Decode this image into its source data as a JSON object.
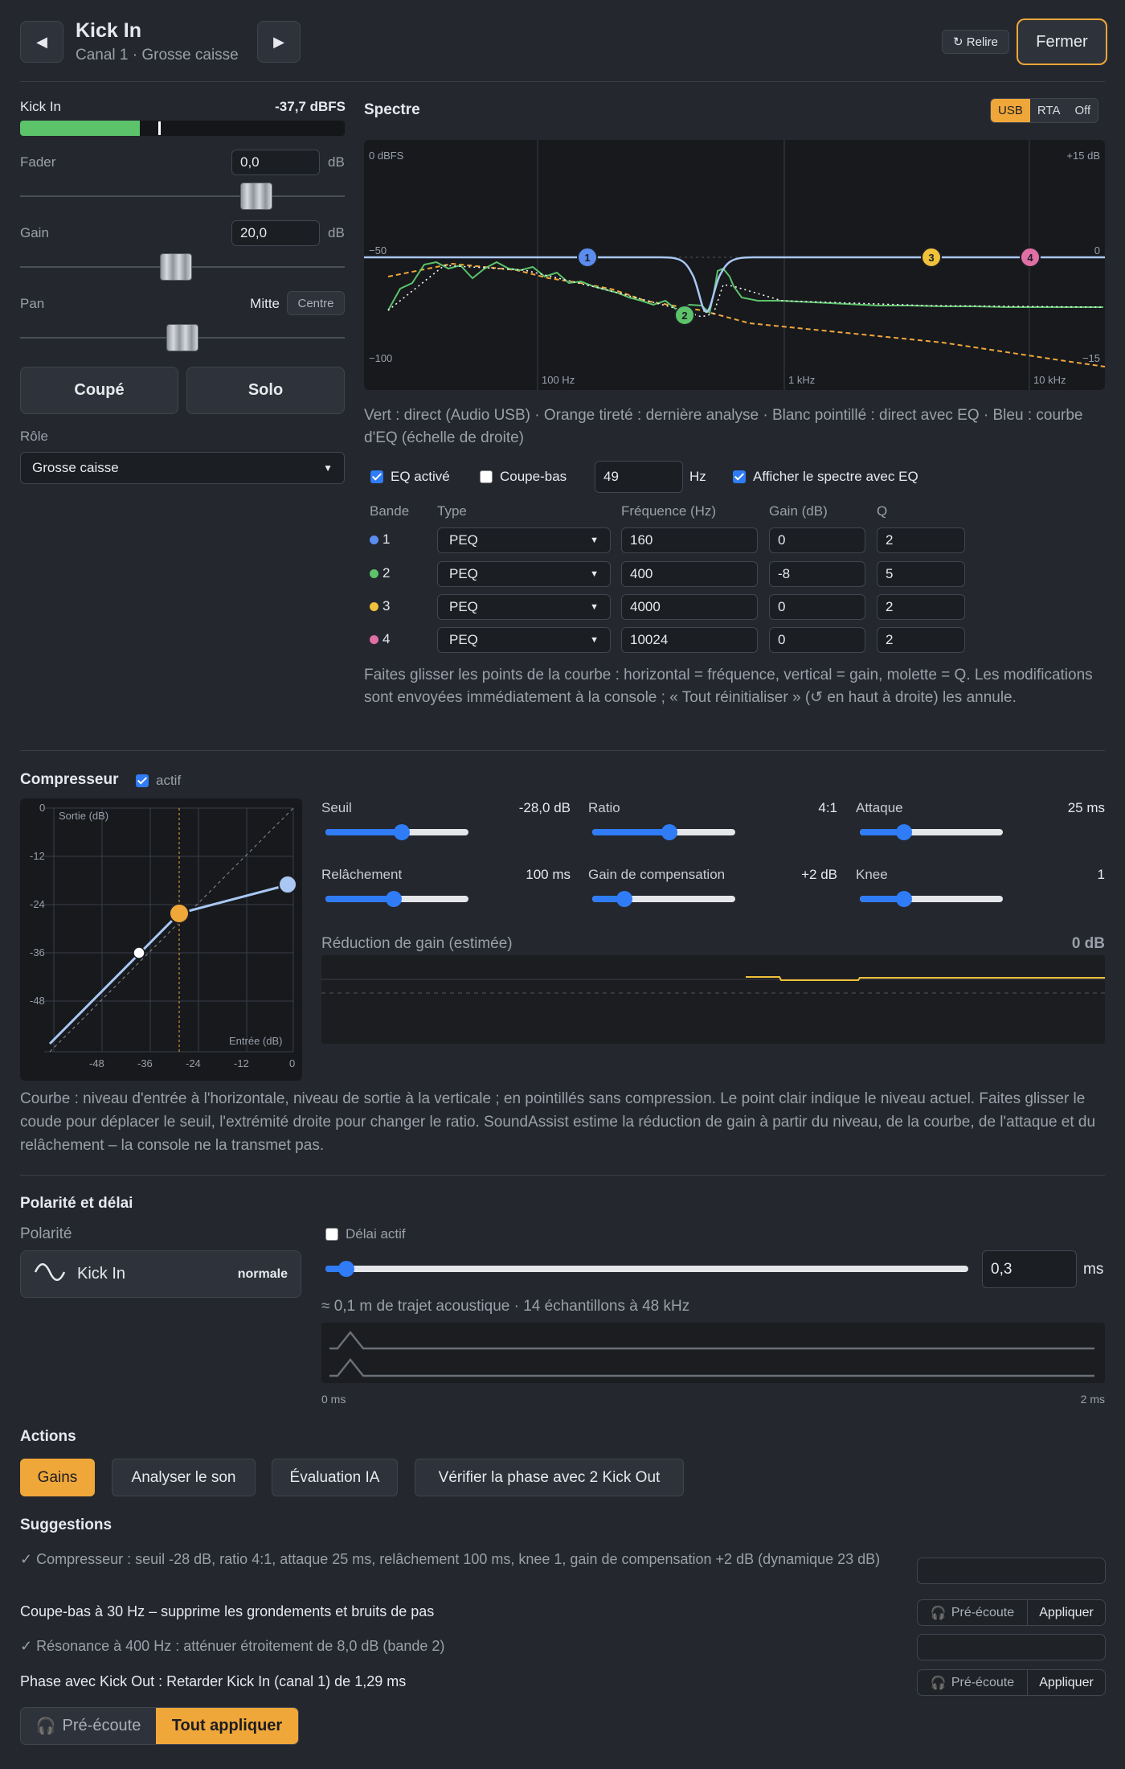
{
  "header": {
    "title": "Kick In",
    "subtitle": "Canal 1 · Grosse caisse",
    "prev": "◀",
    "next": "▶",
    "reload": "↻ Relire",
    "close": "Fermer"
  },
  "meter": {
    "label": "Kick In",
    "value": "-37,7 dBFS",
    "level_fraction": 0.37
  },
  "fader": {
    "label": "Fader",
    "value": "0,0",
    "unit": "dB"
  },
  "gain": {
    "label": "Gain",
    "value": "20,0",
    "unit": "dB"
  },
  "pan": {
    "label": "Pan",
    "value": "Mitte",
    "centre": "Centre"
  },
  "buttons": {
    "mute": "Coupé",
    "solo": "Solo"
  },
  "role": {
    "label": "Rôle",
    "value": "Grosse caisse"
  },
  "spectrum": {
    "title": "Spectre",
    "modes": [
      "USB",
      "RTA",
      "Off"
    ],
    "active_mode": "USB",
    "axis": {
      "top_left": "0 dBFS",
      "top_right": "+15 dB",
      "mid_left": "−50",
      "mid_right": "0",
      "bottom_left": "−100",
      "bottom_right": "−15",
      "x_labels": [
        "100 Hz",
        "1 kHz",
        "10 kHz"
      ]
    },
    "caption": "Vert : direct (Audio USB) · Orange tireté : dernière analyse · Blanc pointillé : direct avec EQ · Bleu : courbe d'EQ (échelle de droite)"
  },
  "eq": {
    "eq_label": "EQ activé",
    "eq_on": true,
    "hpf_label": "Coupe-bas",
    "hpf_on": false,
    "hpf_value": "49",
    "hpf_unit": "Hz",
    "show_label": "Afficher le spectre avec EQ",
    "show_on": true,
    "headers": [
      "Bande",
      "Type",
      "Fréquence (Hz)",
      "Gain (dB)",
      "Q"
    ],
    "bands": [
      {
        "n": "1",
        "color": "#5b8def",
        "type": "PEQ",
        "freq": "160",
        "gain": "0",
        "q": "2"
      },
      {
        "n": "2",
        "color": "#5cc36b",
        "type": "PEQ",
        "freq": "400",
        "gain": "-8",
        "q": "5"
      },
      {
        "n": "3",
        "color": "#f0c13a",
        "type": "PEQ",
        "freq": "4000",
        "gain": "0",
        "q": "2"
      },
      {
        "n": "4",
        "color": "#e06fa6",
        "type": "PEQ",
        "freq": "10024",
        "gain": "0",
        "q": "2"
      }
    ],
    "help": "Faites glisser les points de la courbe : horizontal = fréquence, vertical = gain, molette = Q. Les modifications sont envoyées immédiatement à la console ; « Tout réinitialiser » (↺ en haut à droite) les annule."
  },
  "compressor": {
    "title": "Compresseur",
    "active_label": "actif",
    "active": true,
    "graph": {
      "ylabel": "Sortie (dB)",
      "xlabel": "Entrée (dB)",
      "y_ticks": [
        "0",
        "-12",
        "-24",
        "-36",
        "-48"
      ],
      "x_ticks": [
        "-48",
        "-36",
        "-24",
        "-12",
        "0"
      ]
    },
    "params": [
      {
        "label": "Seuil",
        "value": "-28,0 dB",
        "pos": 0.53
      },
      {
        "label": "Ratio",
        "value": "4:1",
        "pos": 0.54
      },
      {
        "label": "Attaque",
        "value": "25 ms",
        "pos": 0.28
      },
      {
        "label": "Relâchement",
        "value": "100 ms",
        "pos": 0.47
      },
      {
        "label": "Gain de compensation",
        "value": "+2 dB",
        "pos": 0.19
      },
      {
        "label": "Knee",
        "value": "1",
        "pos": 0.28
      }
    ],
    "gr_label": "Réduction de gain (estimée)",
    "gr_value": "0 dB",
    "help": "Courbe : niveau d'entrée à l'horizontale, niveau de sortie à la verticale ; en pointillés sans compression. Le point clair indique le niveau actuel. Faites glisser le coude pour déplacer le seuil, l'extrémité droite pour changer le ratio. SoundAssist estime la réduction de gain à partir du niveau, de la courbe, de l'attaque et du relâchement – la console ne la transmet pas."
  },
  "polarity": {
    "title": "Polarité et délai",
    "pol_label": "Polarité",
    "channel": "Kick In",
    "state": "normale",
    "delay_label": "Délai actif",
    "delay_on": false,
    "delay_value": "0,3",
    "delay_unit": "ms",
    "delay_pos": 0.02,
    "delay_info": "≈ 0,1 m de trajet acoustique · 14 échantillons à 48 kHz",
    "axis_start": "0 ms",
    "axis_end": "2 ms"
  },
  "actions": {
    "title": "Actions",
    "items": [
      "Gains",
      "Analyser le son",
      "Évaluation IA",
      "Vérifier la phase avec 2 Kick Out"
    ]
  },
  "suggestions": {
    "title": "Suggestions",
    "items": [
      {
        "text": "✓ Compresseur : seuil -28 dB, ratio 4:1, attaque 25 ms, relâchement 100 ms, knee 1, gain de compensation +2 dB (dynamique 23 dB)",
        "done": true
      },
      {
        "text": "Coupe-bas à 30 Hz – supprime les grondements et bruits de pas",
        "done": false
      },
      {
        "text": "✓ Résonance à 400 Hz : atténuer étroitement de 8,0 dB (bande 2)",
        "done": true
      },
      {
        "text": "Phase avec Kick Out : Retarder Kick In (canal 1) de 1,29 ms",
        "done": false
      }
    ],
    "preview": "Pré-écoute",
    "apply": "Appliquer",
    "preview_all": "Pré-écoute",
    "apply_all": "Tout appliquer"
  },
  "colors": {
    "accent": "#f0a73a",
    "blue": "#2f7cf6",
    "green": "#5cc36b"
  }
}
